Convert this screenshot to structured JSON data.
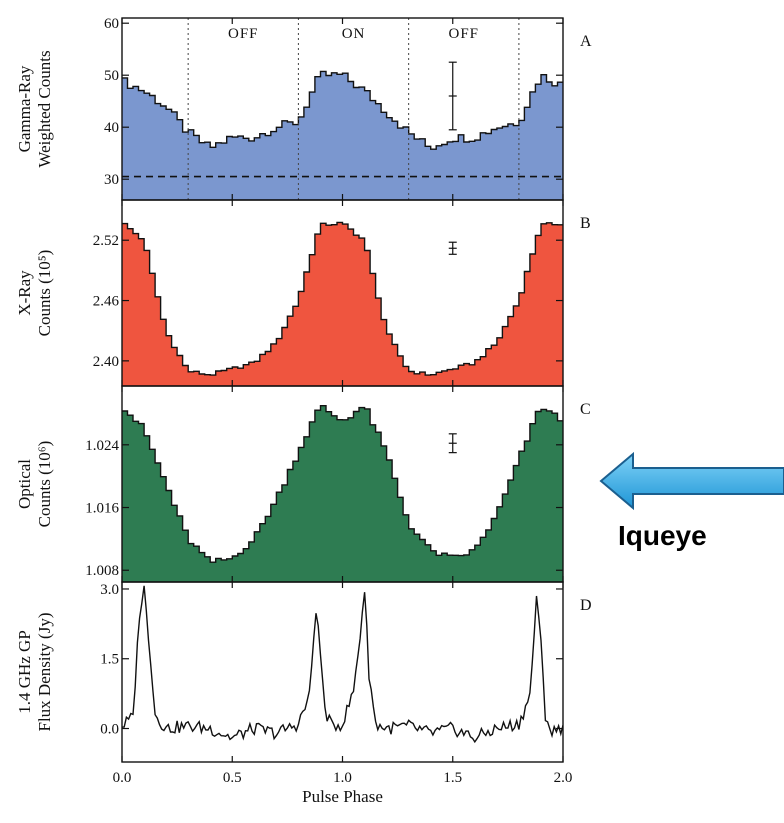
{
  "colors": {
    "gamma": "#7b97cf",
    "xray": "#ef553f",
    "optical": "#2e7c52",
    "radio": "#111111",
    "arrow": "#2aa7e3"
  },
  "annotation": {
    "text": "Iqueye"
  },
  "chart_data": [
    {
      "type": "area",
      "panel": "A",
      "ylabel": [
        "Gamma-Ray",
        "Weighted Counts"
      ],
      "ylim": [
        26,
        61
      ],
      "yticks": [
        30,
        40,
        50,
        60
      ],
      "xlim": [
        0.0,
        2.0
      ],
      "reference_line": 30.5,
      "regions": [
        {
          "label": "OFF",
          "x": 0.55
        },
        {
          "label": "ON",
          "x": 1.05
        },
        {
          "label": "OFF",
          "x": 1.55
        }
      ],
      "dividers": [
        0.3,
        0.8,
        1.3,
        1.8
      ],
      "error_bar": {
        "x": 1.5,
        "y": 46,
        "err": 6.5
      },
      "x": [
        0.0,
        0.1,
        0.2,
        0.3,
        0.4,
        0.5,
        0.6,
        0.7,
        0.8,
        0.9,
        1.0,
        1.1,
        1.2,
        1.3,
        1.4,
        1.5,
        1.6,
        1.7,
        1.8,
        1.9,
        2.0
      ],
      "y": [
        49,
        47,
        44,
        39,
        36,
        38,
        38,
        40,
        41,
        50,
        50,
        47,
        43,
        39,
        36,
        38,
        38,
        40,
        41,
        50,
        48
      ]
    },
    {
      "type": "area",
      "panel": "B",
      "ylabel": [
        "X-Ray",
        "Counts (10⁵)"
      ],
      "ylim": [
        2.375,
        2.56
      ],
      "yticks": [
        2.4,
        2.46,
        2.52
      ],
      "yticklabels": [
        "2.40",
        "2.46",
        "2.52"
      ],
      "xlim": [
        0.0,
        2.0
      ],
      "error_bar": {
        "x": 1.5,
        "y": 2.512,
        "err": 0.006
      },
      "x": [
        0.0,
        0.1,
        0.2,
        0.3,
        0.4,
        0.5,
        0.6,
        0.7,
        0.8,
        0.9,
        1.0,
        1.1,
        1.2,
        1.3,
        1.4,
        1.5,
        1.6,
        1.7,
        1.8,
        1.9,
        2.0
      ],
      "y": [
        2.538,
        2.52,
        2.43,
        2.39,
        2.386,
        2.392,
        2.398,
        2.418,
        2.46,
        2.535,
        2.537,
        2.52,
        2.43,
        2.39,
        2.386,
        2.392,
        2.398,
        2.418,
        2.46,
        2.535,
        2.537
      ]
    },
    {
      "type": "area",
      "panel": "C",
      "ylabel": [
        "Optical",
        "Counts (10⁶)"
      ],
      "ylim": [
        1.0065,
        1.0315
      ],
      "yticks": [
        1.008,
        1.016,
        1.024
      ],
      "yticklabels": [
        "1.008",
        "1.016",
        "1.024"
      ],
      "xlim": [
        0.0,
        2.0
      ],
      "error_bar": {
        "x": 1.5,
        "y": 1.0242,
        "err": 0.0012
      },
      "x": [
        0.0,
        0.1,
        0.2,
        0.3,
        0.4,
        0.5,
        0.6,
        0.7,
        0.8,
        0.9,
        1.0,
        1.1,
        1.2,
        1.3,
        1.4,
        1.5,
        1.6,
        1.7,
        1.8,
        1.9,
        2.0
      ],
      "y": [
        1.029,
        1.026,
        1.019,
        1.012,
        1.009,
        1.0095,
        1.012,
        1.017,
        1.023,
        1.029,
        1.027,
        1.029,
        1.023,
        1.014,
        1.0105,
        1.0095,
        1.0105,
        1.015,
        1.022,
        1.029,
        1.027
      ]
    },
    {
      "type": "line",
      "panel": "D",
      "ylabel": [
        "1.4 GHz GP",
        "Flux Density (Jy)"
      ],
      "xlabel": "Pulse Phase",
      "ylim": [
        -0.72,
        3.15
      ],
      "yticks": [
        0.0,
        1.5,
        3.0
      ],
      "yticklabels": [
        "0.0",
        "1.5",
        "3.0"
      ],
      "xlim": [
        0.0,
        2.0
      ],
      "xticks": [
        0.0,
        0.5,
        1.0,
        1.5,
        2.0
      ],
      "xticklabels": [
        "0.0",
        "0.5",
        "1.0",
        "1.5",
        "2.0"
      ],
      "x": [
        0.0,
        0.05,
        0.08,
        0.1,
        0.13,
        0.15,
        0.2,
        0.3,
        0.4,
        0.5,
        0.6,
        0.7,
        0.8,
        0.85,
        0.88,
        0.9,
        0.92,
        0.95,
        1.0,
        1.05,
        1.08,
        1.1,
        1.12,
        1.15,
        1.2,
        1.3,
        1.4,
        1.5,
        1.6,
        1.7,
        1.8,
        1.85,
        1.88,
        1.9,
        1.92,
        1.95,
        2.0
      ],
      "y": [
        0.05,
        0.25,
        2.5,
        3.0,
        1.5,
        0.3,
        0.0,
        0.05,
        0.0,
        -0.2,
        0.0,
        -0.1,
        0.1,
        0.7,
        2.6,
        1.6,
        0.4,
        0.05,
        0.1,
        0.8,
        2.0,
        3.0,
        1.2,
        0.1,
        0.0,
        0.05,
        -0.1,
        0.0,
        -0.2,
        0.0,
        0.1,
        0.7,
        2.8,
        1.8,
        0.3,
        -0.1,
        0.05
      ]
    }
  ]
}
